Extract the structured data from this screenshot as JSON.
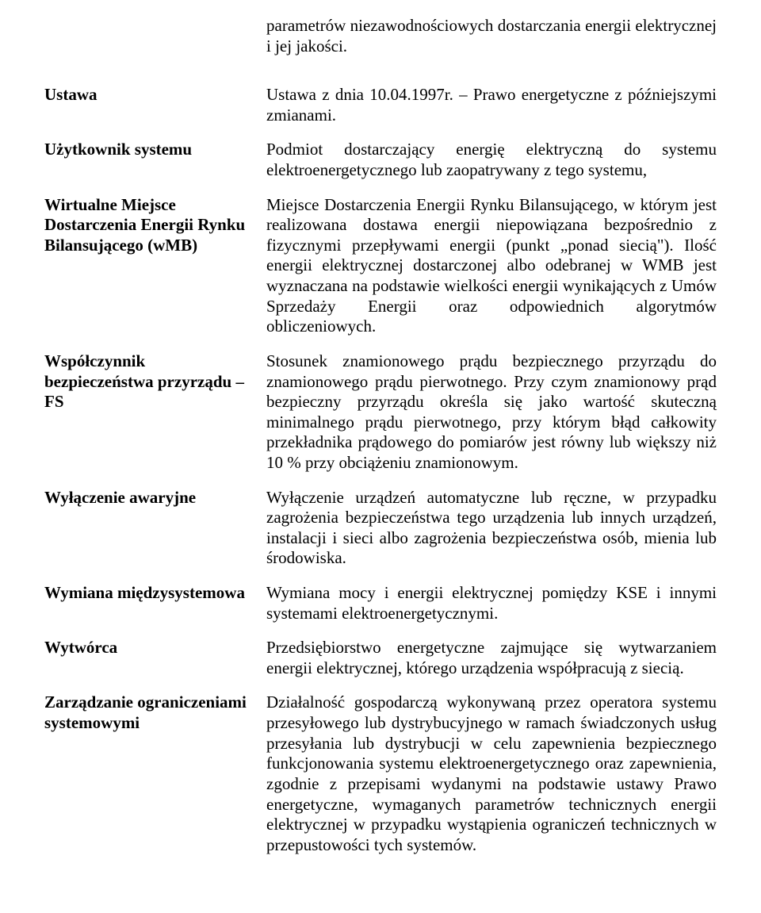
{
  "font_family": "Times New Roman",
  "font_size_pt": 16,
  "text_color": "#000000",
  "background_color": "#ffffff",
  "intro": "parametrów niezawodnościowych dostarczania energii elektrycznej i jej jakości.",
  "entries": [
    {
      "term": "Ustawa",
      "definition": "Ustawa z dnia 10.04.1997r. – Prawo energetyczne z późniejszymi zmianami."
    },
    {
      "term": "Użytkownik systemu",
      "definition": "Podmiot dostarczający energię elektryczną do systemu elektroenergetycznego lub zaopatrywany z tego systemu,"
    },
    {
      "term": "Wirtualne Miejsce Dostarczenia Energii Rynku Bilansującego (wMB)",
      "definition": "Miejsce Dostarczenia Energii Rynku Bilansującego, w którym jest realizowana dostawa energii niepowiązana bezpośrednio z fizycznymi przepływami energii (punkt „ponad siecią\"). Ilość energii elektrycznej dostarczonej albo odebranej w WMB jest wyznaczana na podstawie wielkości energii wynikających z Umów Sprzedaży Energii oraz odpowiednich algorytmów obliczeniowych."
    },
    {
      "term": "Współczynnik bezpieczeństwa przyrządu – FS",
      "definition": "Stosunek znamionowego prądu bezpiecznego przyrządu do znamionowego prądu pierwotnego. Przy czym znamionowy prąd bezpieczny przyrządu określa się jako wartość skuteczną minimalnego prądu pierwotnego, przy którym błąd całkowity przekładnika prądowego do pomiarów jest równy lub większy niż 10 % przy obciążeniu znamionowym."
    },
    {
      "term": "Wyłączenie awaryjne",
      "definition": "Wyłączenie urządzeń automatyczne lub ręczne, w przypadku zagrożenia bezpieczeństwa tego urządzenia lub innych urządzeń, instalacji i sieci albo zagrożenia bezpieczeństwa osób, mienia lub środowiska."
    },
    {
      "term": "Wymiana międzysystemowa",
      "definition": "Wymiana mocy i energii elektrycznej pomiędzy KSE i innymi systemami elektroenergetycznymi."
    },
    {
      "term": "Wytwórca",
      "definition": "Przedsiębiorstwo energetyczne zajmujące się wytwarzaniem energii elektrycznej, którego urządzenia współpracują z siecią."
    },
    {
      "term": "Zarządzanie ograniczeniami systemowymi",
      "definition": "Działalność gospodarczą wykonywaną przez operatora systemu przesyłowego lub dystrybucyjnego w ramach świadczonych usług przesyłania lub dystrybucji w celu zapewnienia bezpiecznego funkcjonowania systemu elektroenergetycznego oraz zapewnienia, zgodnie z przepisami wydanymi na podstawie ustawy Prawo energetyczne, wymaganych parametrów technicznych energii elektrycznej w przypadku wystąpienia ograniczeń technicznych w przepustowości tych systemów."
    }
  ]
}
